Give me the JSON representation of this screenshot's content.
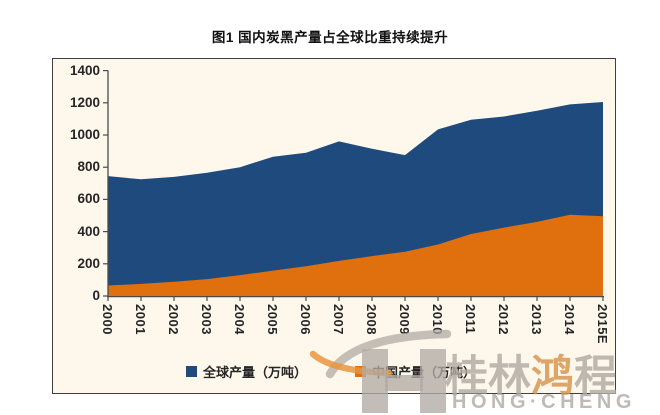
{
  "title": "图1 国内炭黑产量占全球比重持续提升",
  "chart_data": {
    "type": "area",
    "x": [
      "2000",
      "2001",
      "2002",
      "2003",
      "2004",
      "2005",
      "2006",
      "2007",
      "2008",
      "2009",
      "2010",
      "2011",
      "2012",
      "2013",
      "2014",
      "2015E"
    ],
    "series": [
      {
        "name": "全球产量（万吨）",
        "color": "#1F4A7D",
        "values": [
          745,
          725,
          740,
          765,
          800,
          865,
          890,
          960,
          915,
          875,
          1035,
          1095,
          1115,
          1150,
          1190,
          1205
        ]
      },
      {
        "name": "中国产量（万吨）",
        "color": "#E06F0E",
        "values": [
          65,
          75,
          88,
          105,
          130,
          158,
          185,
          218,
          248,
          275,
          320,
          385,
          425,
          460,
          505,
          495
        ]
      }
    ],
    "xlabel": "",
    "ylabel": "",
    "ylim": [
      0,
      1400
    ],
    "ytick_step": 200,
    "grid": false,
    "legend_position": "bottom",
    "plot_background": "#FDF8EB",
    "axis_color": "#4a4a4a"
  },
  "watermark": {
    "cjk_prefix": "桂林",
    "cjk_highlight": "鸿",
    "cjk_suffix": "程",
    "latin": "HONG·CHENG",
    "gray": "#B1ABA4",
    "highlight_color": "#D6954C",
    "orange": "#E8953E"
  }
}
